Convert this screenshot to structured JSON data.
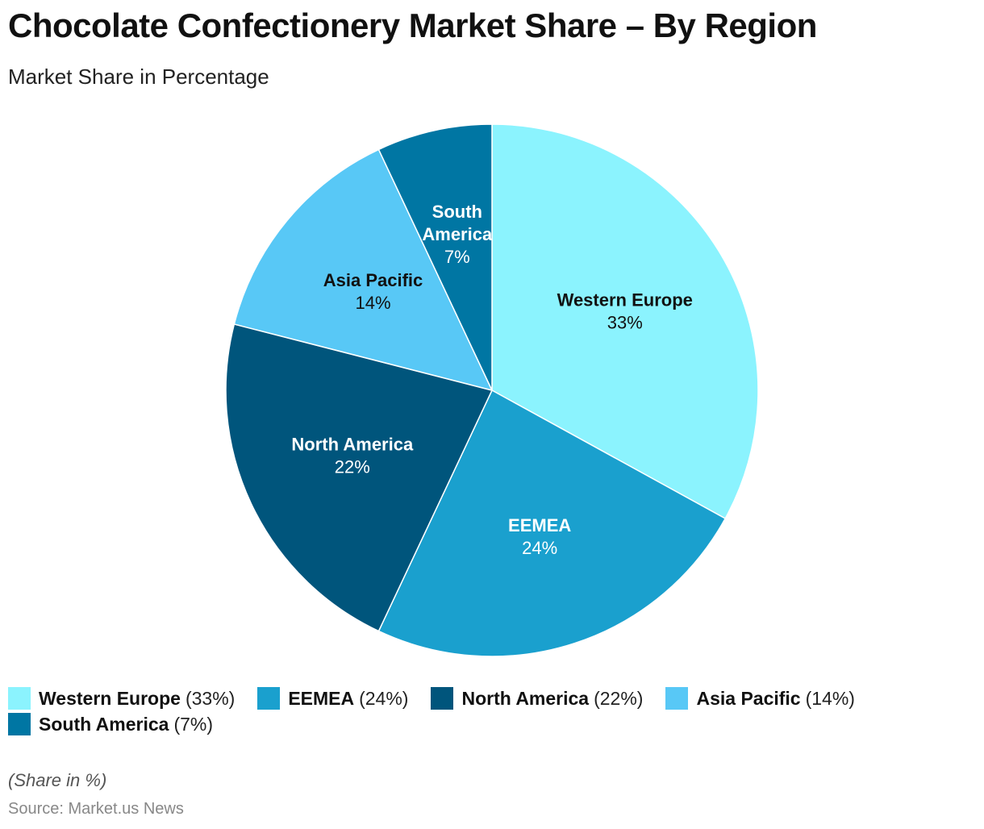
{
  "header": {
    "title": "Chocolate Confectionery Market Share – By Region",
    "subtitle": "Market Share in Percentage"
  },
  "chart_data": {
    "type": "pie",
    "title": "Chocolate Confectionery Market Share – By Region",
    "subtitle": "Market Share in Percentage",
    "unit": "%",
    "start": "12 o'clock",
    "direction": "clockwise",
    "slices": [
      {
        "name": "Western Europe",
        "value": 33,
        "label": "33%",
        "color": "#8BF3FE",
        "text_color": "#111111"
      },
      {
        "name": "EEMEA",
        "value": 24,
        "label": "24%",
        "color": "#1AA0CE",
        "text_color": "#FFFFFF"
      },
      {
        "name": "North America",
        "value": 22,
        "label": "22%",
        "color": "#00557C",
        "text_color": "#FFFFFF"
      },
      {
        "name": "Asia Pacific",
        "value": 14,
        "label": "14%",
        "color": "#58C8F6",
        "text_color": "#111111"
      },
      {
        "name": "South America",
        "value": 7,
        "label": "7%",
        "color": "#0076A3",
        "text_color": "#FFFFFF"
      }
    ],
    "legend_position": "bottom"
  },
  "legend": [
    {
      "name": "Western Europe",
      "pct": "(33%)"
    },
    {
      "name": "EEMEA",
      "pct": "(24%)"
    },
    {
      "name": "North America",
      "pct": "(22%)"
    },
    {
      "name": "Asia Pacific",
      "pct": "(14%)"
    },
    {
      "name": "South America",
      "pct": "(7%)"
    }
  ],
  "footer": {
    "note": "(Share in %)",
    "source": "Source: Market.us News"
  }
}
